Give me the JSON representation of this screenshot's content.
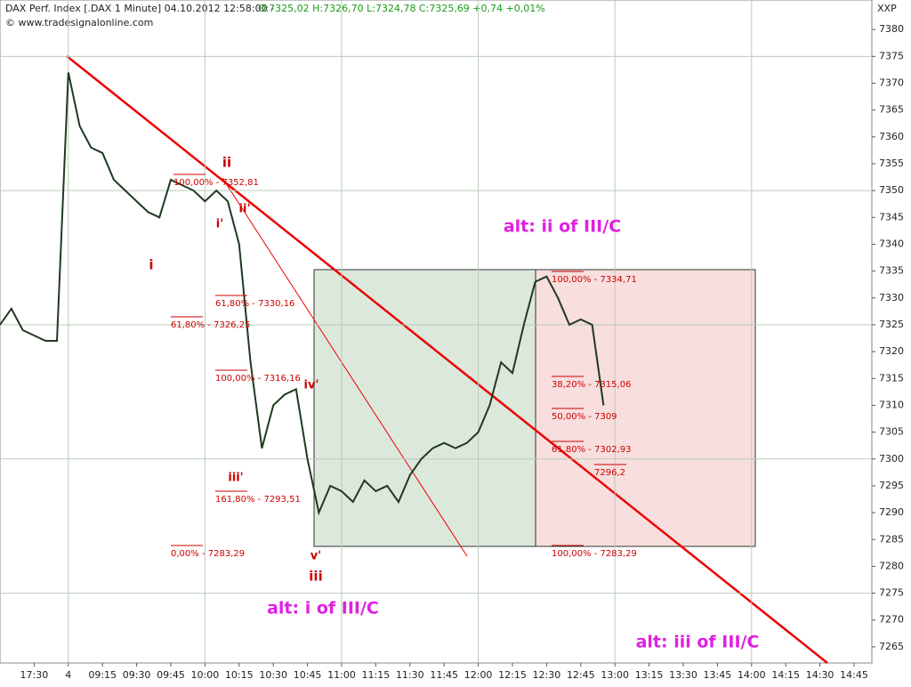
{
  "chart_data": {
    "type": "line",
    "title": "DAX Perf. Index [.DAX  1 Minute] 04.10.2012 12:58:00 -",
    "subtitle": "O:7325,02 H:7326,70 L:7324,78 C:7325,69 +0,74 +0,01%",
    "copyright": "© www.tradesignalonline.com",
    "corner_label": "XXP",
    "categories": [
      null,
      null,
      null,
      "17:30",
      null,
      null,
      "4",
      null,
      null,
      "09:15",
      null,
      null,
      "09:30",
      null,
      null,
      "09:45",
      null,
      null,
      "10:00",
      null,
      null,
      "10:15",
      null,
      null,
      "10:30",
      null,
      null,
      "10:45",
      null,
      null,
      "11:00",
      null,
      null,
      "11:15",
      null,
      null,
      "11:30",
      null,
      null,
      "11:45",
      null,
      null,
      "12:00",
      null,
      null,
      "12:15",
      null,
      null,
      "12:30",
      null,
      null,
      "12:45",
      null,
      null,
      "13:00",
      null,
      null,
      "13:15",
      null,
      null,
      "13:30",
      null,
      null,
      "13:45",
      null,
      null,
      "14:00",
      null,
      null,
      "14:15",
      null,
      null,
      "14:30",
      null,
      null,
      "14:45",
      null
    ],
    "series": [
      {
        "color": "#1f3a1f",
        "values": [
          7325,
          7328,
          7324,
          7323,
          7322,
          7322,
          7372,
          7362,
          7358,
          7357,
          7352,
          7350,
          7348,
          7346,
          7345,
          7352,
          7351,
          7350,
          7348,
          7350,
          7348,
          7340,
          7318,
          7302,
          7310,
          7312,
          7313,
          7300,
          7290,
          7295,
          7294,
          7292,
          7296,
          7294,
          7295,
          7292,
          7297,
          7300,
          7302,
          7303,
          7302,
          7303,
          7305,
          7310,
          7318,
          7316,
          7325,
          7333,
          7334,
          7330,
          7325,
          7326,
          7325,
          7310,
          null,
          null,
          null,
          null,
          null,
          null,
          null,
          null,
          null,
          null,
          null,
          null,
          null,
          null,
          null,
          null,
          null,
          null,
          null,
          null,
          null,
          null,
          null
        ]
      }
    ],
    "ylim": [
      7262,
      7385.5
    ],
    "yticks": [
      7265,
      7270,
      7275,
      7280,
      7285,
      7290,
      7295,
      7300,
      7305,
      7310,
      7315,
      7320,
      7325,
      7330,
      7335,
      7340,
      7345,
      7350,
      7355,
      7360,
      7365,
      7370,
      7375,
      7380
    ],
    "wave_labels": [
      "ii",
      "i",
      "i'",
      "ii'",
      "iii'",
      "iv'",
      "v'",
      "iii"
    ],
    "fib_labels": [
      "100,00% - 7352,81",
      "61,80% - 7330,16",
      "61,80% - 7326,25",
      "100,00% - 7316,16",
      "161,80% - 7293,51",
      "0,00% - 7283,29",
      "100,00% - 7334,71",
      "38,20% - 7315,06",
      "50,00% - 7309",
      "61,80% - 7302,93",
      "7296,2",
      "100,00% - 7283,29"
    ],
    "scenario_labels": [
      "alt: ii of III/C",
      "alt: i of III/C",
      "alt: iii of III/C"
    ]
  }
}
